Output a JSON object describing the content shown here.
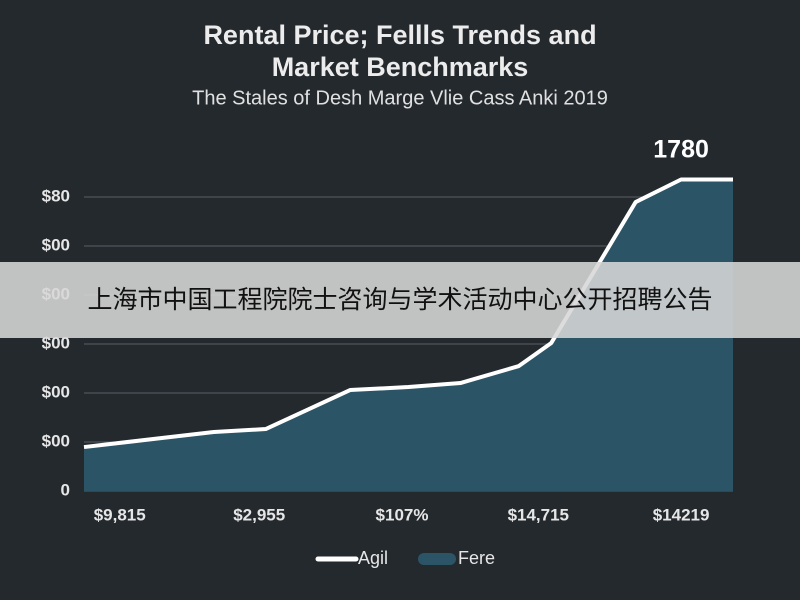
{
  "chart_data": {
    "type": "area",
    "title": [
      "Rental Price; Fellls Trends and",
      "Market Benchmarks"
    ],
    "subtitle": "The Stales of Desh Marge Vlie Cass Anki 2019",
    "annotation": {
      "text": "1780",
      "x": 92,
      "y": 1780
    },
    "x": [
      0,
      12,
      20,
      28,
      41,
      50,
      58,
      67,
      72,
      85,
      92,
      100
    ],
    "xlim": [
      0,
      100
    ],
    "xticks": [
      {
        "value": 5.5,
        "label": "$9,815"
      },
      {
        "value": 27,
        "label": "$2,955"
      },
      {
        "value": 49,
        "label": "$107%"
      },
      {
        "value": 70,
        "label": "$14,715"
      },
      {
        "value": 92,
        "label": "$14219"
      }
    ],
    "ylim": [
      0,
      1900
    ],
    "yticks": [
      0,
      {
        "value": 280,
        "label": "$00"
      },
      {
        "value": 560,
        "label": "$00"
      },
      {
        "value": 840,
        "label": "$00"
      },
      {
        "value": 1120,
        "label": "$00"
      },
      {
        "value": 1400,
        "label": "$00"
      },
      {
        "value": 1680,
        "label": "$80"
      }
    ],
    "grid": true,
    "series": [
      {
        "name": "Agil",
        "color": "#ffffff",
        "style": "line",
        "values": [
          251,
          303,
          337,
          354,
          577,
          594,
          617,
          714,
          846,
          1651,
          1780,
          1780
        ]
      },
      {
        "name": "Fere",
        "color": "#2b5566",
        "style": "area",
        "values": [
          251,
          303,
          337,
          354,
          577,
          594,
          617,
          714,
          846,
          1651,
          1780,
          1780
        ]
      }
    ],
    "legend": "bottom"
  },
  "overlay": {
    "text": "上海市中国工程院院士咨询与学术活动中心公开招聘公告"
  }
}
